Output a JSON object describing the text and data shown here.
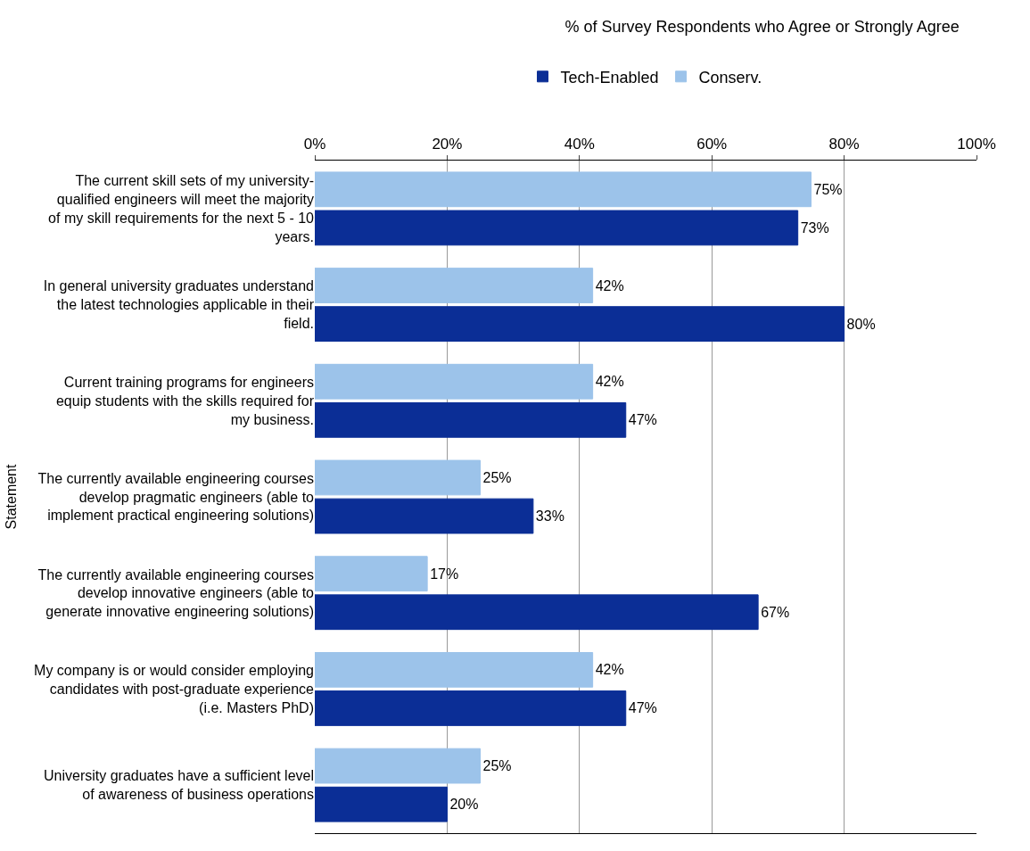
{
  "chart_data": {
    "type": "bar",
    "orientation": "horizontal",
    "title": "% of Survey Respondents who Agree or Strongly Agree",
    "ylabel": "Statement",
    "categories": [
      "The current skill sets of my university-qualified engineers will meet the majority of my skill requirements for the next 5 - 10 years.",
      "In general university graduates understand the latest technologies applicable in their field.",
      "Current training programs for engineers equip students with the skills required for my business.",
      "The currently available engineering courses develop pragmatic engineers (able to implement practical engineering solutions)",
      "The currently available engineering courses develop innovative engineers (able to generate innovative engineering solutions)",
      "My company is or would consider employing candidates with post-graduate experience (i.e. Masters PhD)",
      "University graduates have a sufficient level of awareness of business operations"
    ],
    "series": [
      {
        "name": "Tech-Enabled",
        "color": "#0b2e96",
        "values": [
          73,
          80,
          47,
          33,
          67,
          47,
          20
        ],
        "value_labels": [
          "73%",
          "80%",
          "47%",
          "33%",
          "67%",
          "47%",
          "20%"
        ]
      },
      {
        "name": "Conserv.",
        "color": "#9cc3ea",
        "values": [
          75,
          42,
          42,
          25,
          17,
          42,
          25
        ],
        "value_labels": [
          "75%",
          "42%",
          "42%",
          "25%",
          "17%",
          "42%",
          "25%"
        ]
      }
    ],
    "xlim": [
      0,
      100
    ],
    "xticks": [
      {
        "value": 0,
        "label": "0%"
      },
      {
        "value": 20,
        "label": "20%"
      },
      {
        "value": 40,
        "label": "40%"
      },
      {
        "value": 60,
        "label": "60%"
      },
      {
        "value": 80,
        "label": "80%"
      },
      {
        "value": 100,
        "label": "100%"
      }
    ],
    "grid": "x",
    "legend": "top"
  }
}
